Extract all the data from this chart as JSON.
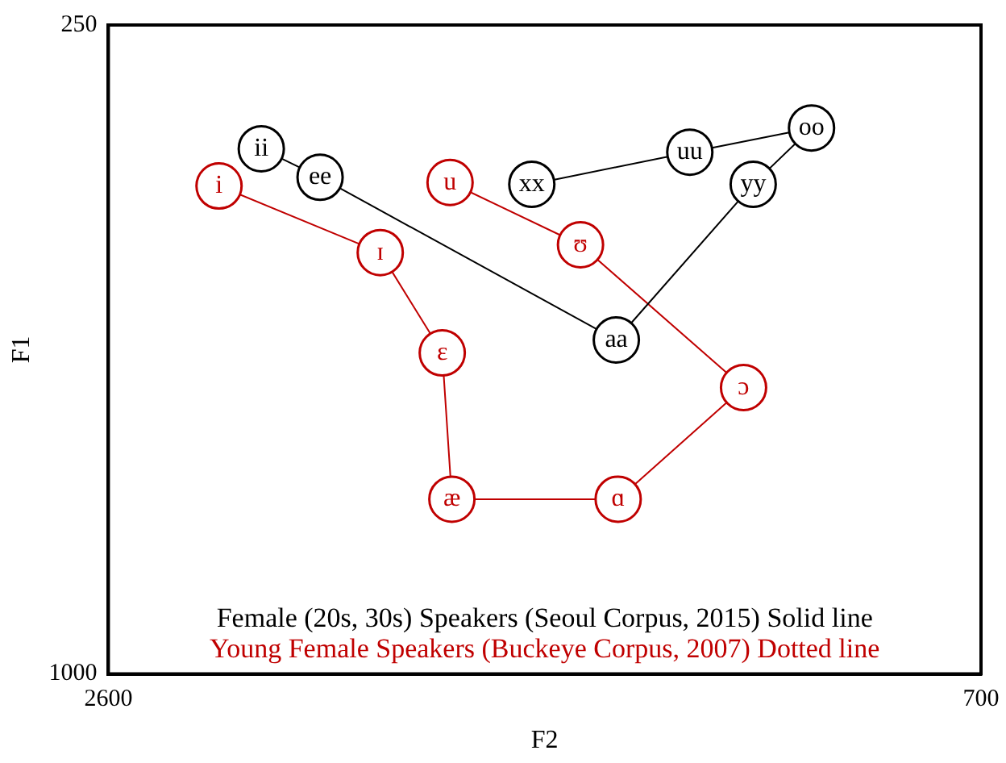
{
  "chart_data": {
    "type": "line",
    "xlabel": "F2",
    "ylabel": "F1",
    "series": [
      {
        "name": "Female (20s, 30s) Speakers (Seoul Corpus, 2015) Solid line",
        "color": "#000000",
        "x": [
          2267,
          2139,
          1494,
          1196,
          1069,
          1334,
          1678
        ],
        "values": [
          393,
          426,
          614,
          434,
          369,
          397,
          434
        ],
        "value_labels": [
          "ii",
          "ee",
          "aa",
          "yy",
          "oo",
          "uu",
          "xx"
        ]
      },
      {
        "name": "Young Female Speakers (Buckeye Corpus, 2007) Dotted line",
        "color": "#c00000",
        "x": [
          2359,
          2008,
          1873,
          1852,
          1490,
          1217,
          1572,
          1856
        ],
        "values": [
          436,
          513,
          629,
          798,
          798,
          669,
          504,
          432
        ],
        "value_labels": [
          "i",
          "ɪ",
          "ɛ",
          "æ",
          "ɑ",
          "ɔ",
          "ʊ",
          "u"
        ]
      }
    ],
    "xlim": [
      2600,
      700
    ],
    "xticks": [
      2600,
      700
    ],
    "ylim": [
      1000,
      250
    ],
    "yticks": [
      1000,
      250
    ],
    "grid": false,
    "legend": "bottom",
    "marker": "circle",
    "line_style": "solid"
  }
}
